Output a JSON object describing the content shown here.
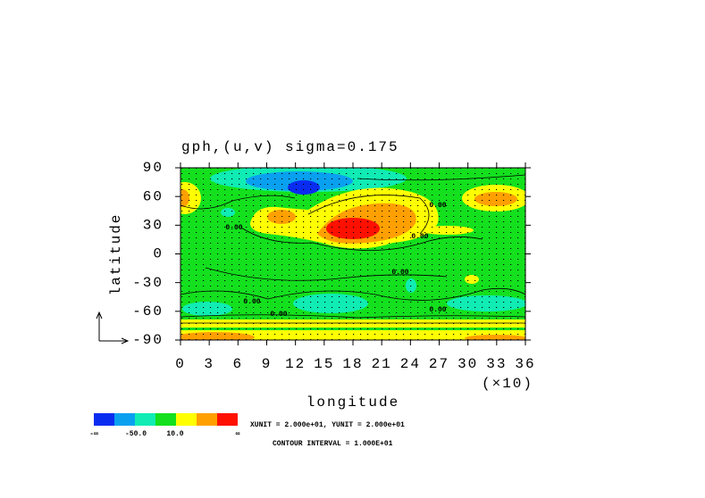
{
  "chart_data": {
    "type": "contour",
    "title": "gph,(u,v) sigma=0.175",
    "x_label": "longitude",
    "y_label": "latitude",
    "x_multiplier": "(×10)",
    "xlim": [
      0,
      36
    ],
    "xticks": [
      0,
      3,
      6,
      9,
      12,
      15,
      18,
      21,
      24,
      27,
      30,
      33,
      36
    ],
    "ylim": [
      -90,
      90
    ],
    "yticks": [
      90,
      60,
      30,
      0,
      -30,
      -60,
      -90
    ],
    "contour_labels": [
      "0.00",
      "0.00",
      "0.00",
      "0.00",
      "0.00",
      "0.00",
      "0.00"
    ],
    "colorbar": {
      "colors": [
        "#0a2cf0",
        "#0aa0f0",
        "#10ecb4",
        "#14e01e",
        "#ffff00",
        "#ffa000",
        "#ff1000"
      ],
      "labels": [
        "-∞",
        "-50.0",
        "10.0",
        "∞"
      ]
    },
    "unit_note": "XUNIT = 2.000e+01, YUNIT = 2.000e+01",
    "contour_interval": "CONTOUR INTERVAL = 1.000E+01"
  }
}
